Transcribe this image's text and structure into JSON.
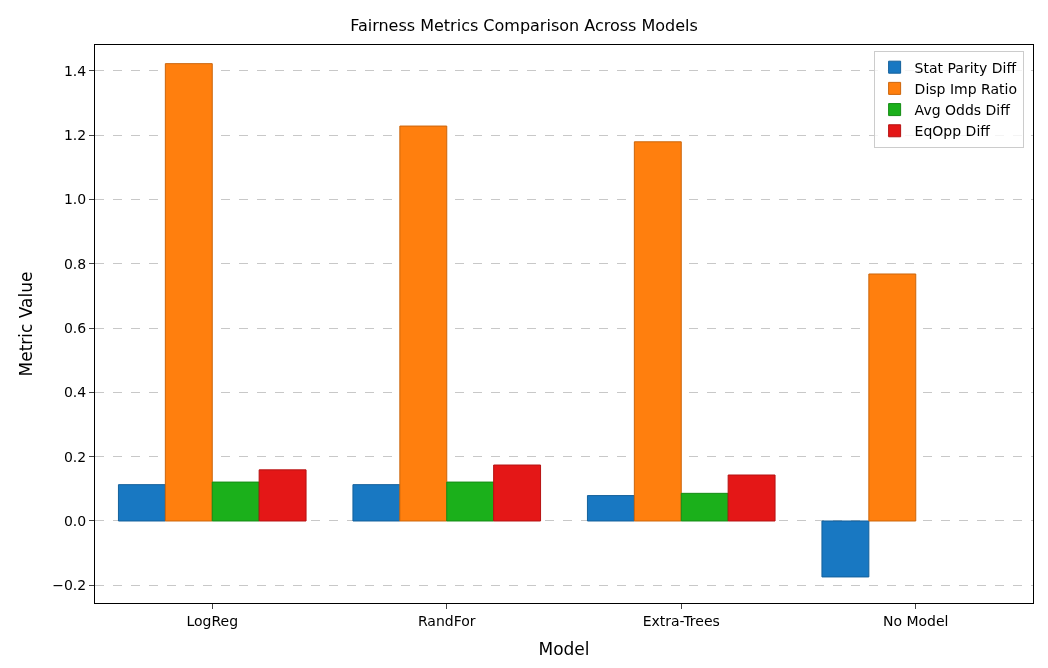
{
  "chart_data": {
    "type": "bar",
    "title": "Fairness Metrics Comparison Across Models",
    "xlabel": "Model",
    "ylabel": "Metric Value",
    "categories": [
      "LogReg",
      "RandFor",
      "Extra-Trees",
      "No Model"
    ],
    "series": [
      {
        "name": "Stat Parity Diff",
        "color": "#1878c2",
        "values": [
          0.113,
          0.113,
          0.079,
          -0.174
        ]
      },
      {
        "name": "Disp Imp Ratio",
        "color": "#ff7f0e",
        "values": [
          1.422,
          1.228,
          1.179,
          0.768
        ]
      },
      {
        "name": "Avg Odds Diff",
        "color": "#1bb01b",
        "values": [
          0.121,
          0.121,
          0.086,
          null
        ]
      },
      {
        "name": "EqOpp Diff",
        "color": "#e41717",
        "values": [
          0.159,
          0.174,
          0.143,
          null
        ]
      }
    ],
    "ylim": [
      -0.255,
      1.48
    ],
    "yticks": [
      {
        "value": -0.2,
        "label": "−0.2"
      },
      {
        "value": 0,
        "label": "0.0"
      },
      {
        "value": 0.2,
        "label": "0.2"
      },
      {
        "value": 0.4,
        "label": "0.4"
      },
      {
        "value": 0.6,
        "label": "0.6"
      },
      {
        "value": 0.8,
        "label": "0.8"
      },
      {
        "value": 1.0,
        "label": "1.0"
      },
      {
        "value": 1.2,
        "label": "1.2"
      },
      {
        "value": 1.4,
        "label": "1.4"
      }
    ],
    "grid": "y",
    "legend": "top right"
  }
}
